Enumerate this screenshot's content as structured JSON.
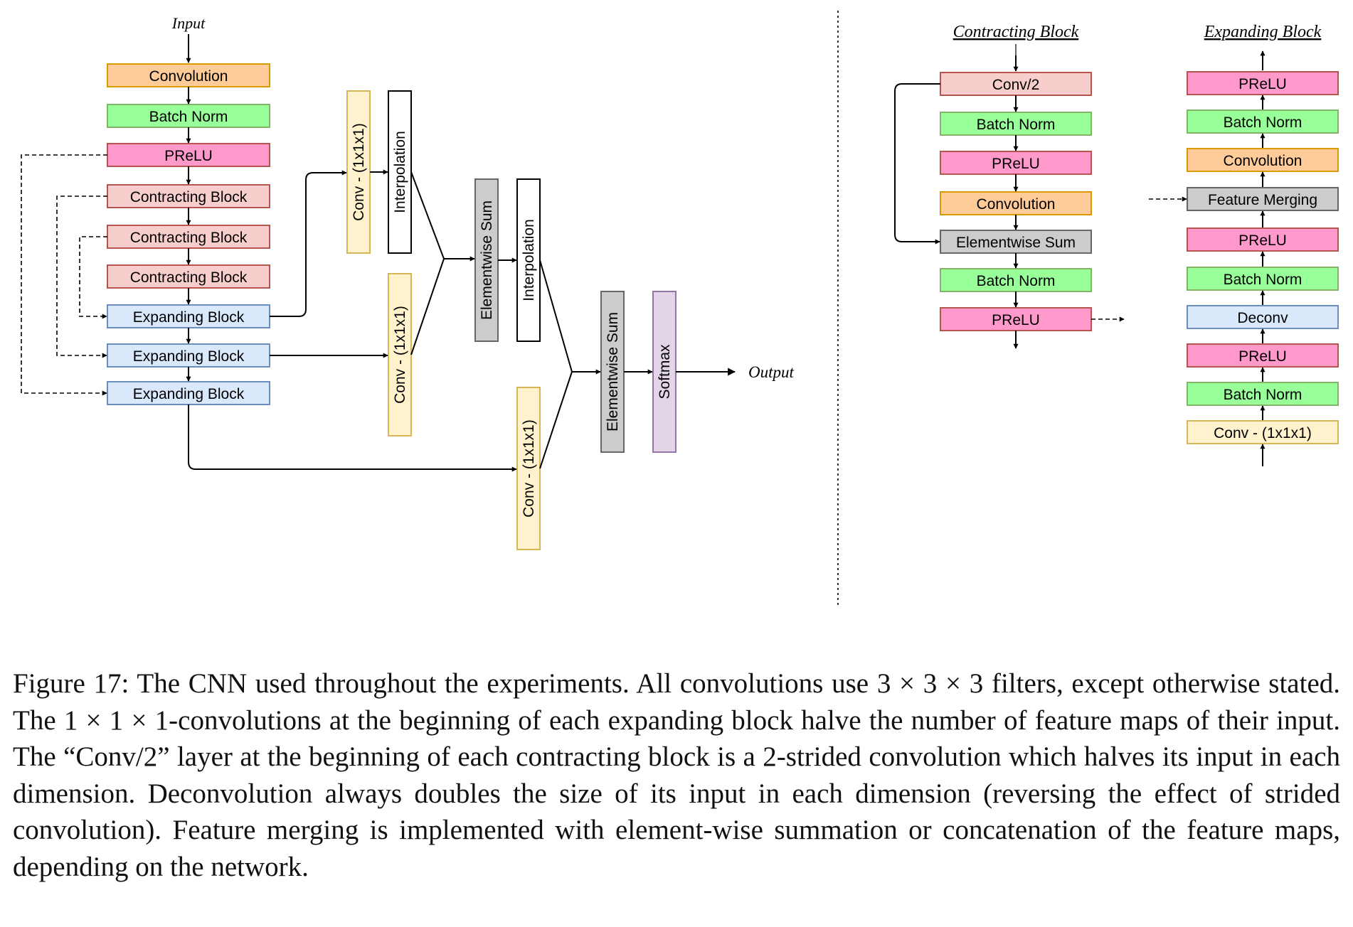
{
  "colors": {
    "orange": "#ffcc99",
    "orange_stroke": "#d79b00",
    "green": "#99ff99",
    "green_stroke": "#82b366",
    "pink": "#ff99cc",
    "pink_stroke": "#b85450",
    "lightred": "#f8cecc",
    "lightred_stroke": "#b85450",
    "blue": "#dae8fc",
    "blue_stroke": "#6c8ebf",
    "yellow": "#fff2cc",
    "yellow_stroke": "#d6b656",
    "gray": "#cccccc",
    "gray_stroke": "#666666",
    "white": "#ffffff",
    "purple": "#e1d5e7",
    "purple_stroke": "#9673a6"
  },
  "main": {
    "input_label": "Input",
    "output_label": "Output",
    "layers": [
      "Convolution",
      "Batch Norm",
      "PReLU",
      "Contracting Block",
      "Contracting Block",
      "Contracting Block",
      "Expanding Block",
      "Expanding Block",
      "Expanding Block"
    ],
    "conv1": "Conv - (1x1x1)",
    "conv2": "Conv - (1x1x1)",
    "conv3": "Conv - (1x1x1)",
    "interp1": "Interpolation",
    "interp2": "Interpolation",
    "sum1": "Elementwise Sum",
    "sum2": "Elementwise Sum",
    "softmax": "Softmax"
  },
  "contracting_block": {
    "title": "Contracting Block",
    "layers": [
      "Conv/2",
      "Batch Norm",
      "PReLU",
      "Convolution",
      "Elementwise Sum",
      "Batch Norm",
      "PReLU"
    ]
  },
  "expanding_block": {
    "title": "Expanding Block",
    "layers": [
      "PReLU",
      "Batch Norm",
      "Convolution",
      "Feature Merging",
      "PReLU",
      "Batch Norm",
      "Deconv",
      "PReLU",
      "Batch Norm",
      "Conv - (1x1x1)"
    ]
  },
  "caption": "Figure 17: The CNN used throughout the experiments. All convolutions use 3 × 3 × 3 filters, except otherwise stated. The 1 × 1 × 1-convolutions at the beginning of each expanding block halve the number of feature maps of their input. The “Conv/2” layer at the beginning of each contracting block is a 2-strided convolution which halves its input in each dimension. Deconvolution always doubles the size of its input in each dimension (reversing the effect of strided convolution). Feature merging is implemented with element-wise summation or concatenation of the feature maps, depending on the network."
}
